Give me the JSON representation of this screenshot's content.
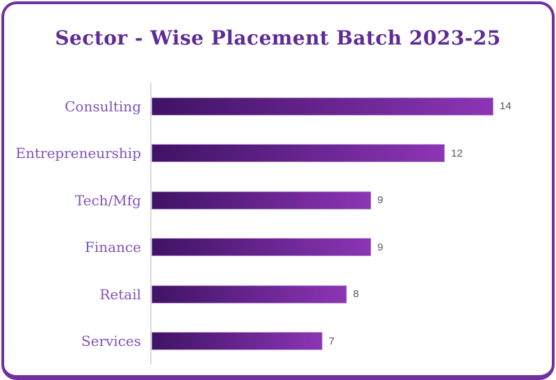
{
  "chart_data": {
    "type": "bar",
    "orientation": "horizontal",
    "title": "Sector - Wise Placement Batch 2023-25",
    "categories": [
      "Consulting",
      "Entrepreneurship",
      "Tech/Mfg",
      "Finance",
      "Retail",
      "Services"
    ],
    "values": [
      14,
      12,
      9,
      9,
      8,
      7
    ],
    "data_labels": [
      "14",
      "12",
      "9",
      "9",
      "8",
      "7"
    ],
    "xlim": [
      0,
      14
    ],
    "grid": false,
    "legend": "none",
    "value_axis_shown": false,
    "category_axis_line_shown": true
  },
  "styles": {
    "frame_border_color": "#7030a0",
    "background_color": "#ffffff",
    "title_color": "#5e2b97",
    "category_label_color": "#7e52b8",
    "value_label_color": "#595959",
    "axis_line_color": "#d9d9d9",
    "bar_gradient_start": "#3f1365",
    "bar_gradient_end": "#8c35b5",
    "bar_rim_color": "#b18ed1"
  }
}
